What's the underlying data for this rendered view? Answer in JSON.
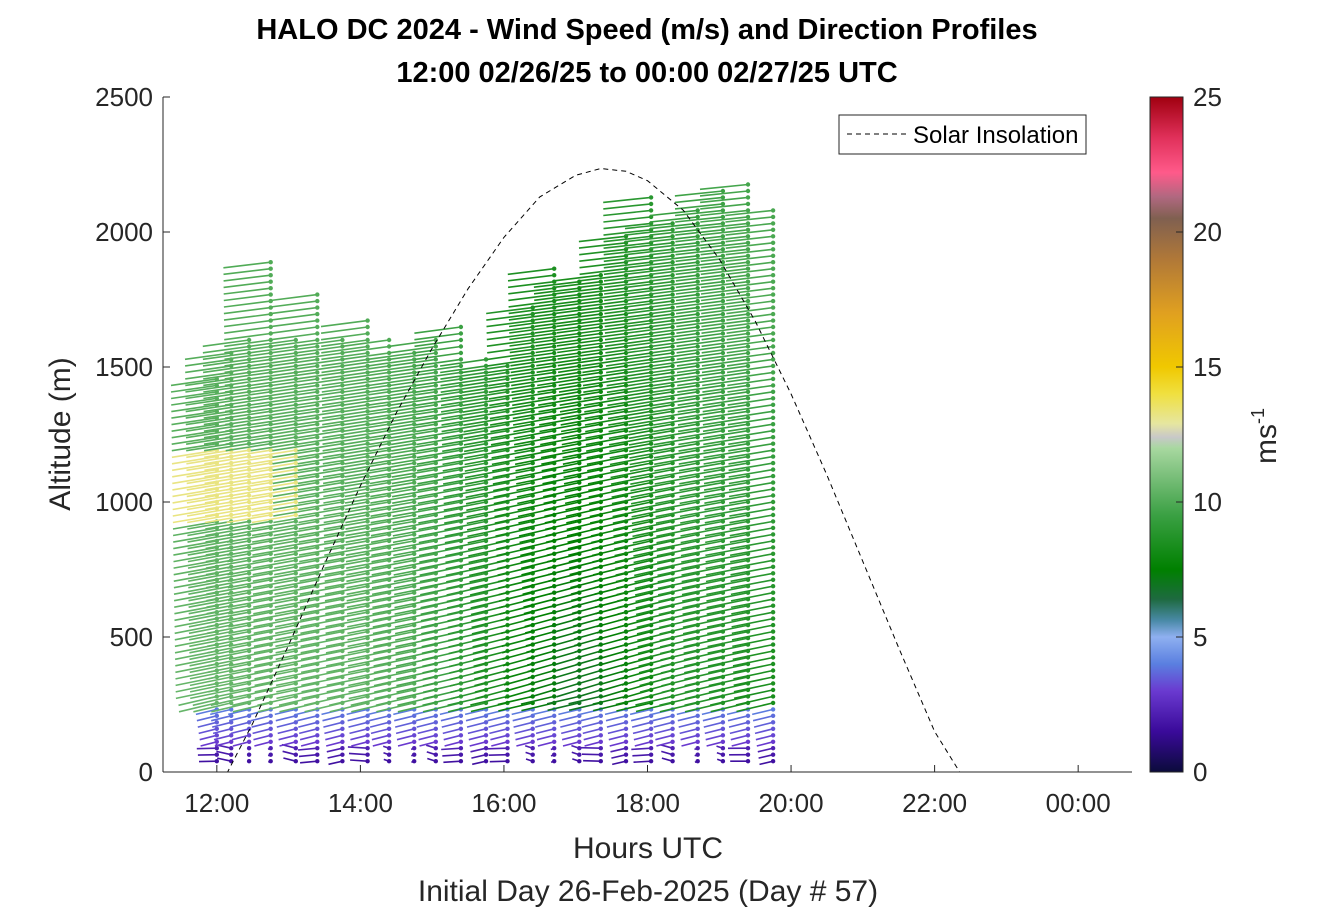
{
  "chart_data": {
    "type": "wind-barb-profile",
    "title": "HALO DC 2024 - Wind Speed (m/s) and Direction Profiles",
    "subtitle": "12:00 02/26/25 to 00:00 02/27/25  UTC",
    "xlabel": "Hours UTC",
    "xlabel2": "Initial Day 26-Feb-2025 (Day # 57)",
    "ylabel": "Altitude (m)",
    "xlim": [
      11.25,
      24.75
    ],
    "ylim": [
      0,
      2500
    ],
    "x_ticks": [
      12,
      14,
      16,
      18,
      20,
      22,
      24
    ],
    "x_tick_labels": [
      "12:00",
      "14:00",
      "16:00",
      "18:00",
      "20:00",
      "22:00",
      "00:00"
    ],
    "y_ticks": [
      0,
      500,
      1000,
      1500,
      2000,
      2500
    ],
    "y_tick_labels": [
      "0",
      "500",
      "1000",
      "1500",
      "2000",
      "2500"
    ],
    "legend": {
      "label": "Solar Insolation",
      "position": "top-right",
      "style": "dashed",
      "color": "#000000"
    },
    "colorbar": {
      "label": "ms",
      "label_exponent": "-1",
      "range": [
        0,
        25
      ],
      "ticks": [
        0,
        5,
        10,
        15,
        20,
        25
      ],
      "tick_labels": [
        "0",
        "5",
        "10",
        "15",
        "20",
        "25"
      ],
      "stops": [
        {
          "v": 0,
          "color": "#0b0b3b"
        },
        {
          "v": 1.5,
          "color": "#3a0a9a"
        },
        {
          "v": 3,
          "color": "#6a3ad0"
        },
        {
          "v": 4,
          "color": "#5a7fe0"
        },
        {
          "v": 5,
          "color": "#8fb0f0"
        },
        {
          "v": 5.6,
          "color": "#4a8aa8"
        },
        {
          "v": 6.4,
          "color": "#1e6a40"
        },
        {
          "v": 7.5,
          "color": "#008000"
        },
        {
          "v": 9.5,
          "color": "#3aa043"
        },
        {
          "v": 11,
          "color": "#7cc07c"
        },
        {
          "v": 12,
          "color": "#a8d8a0"
        },
        {
          "v": 12.4,
          "color": "#c8c8c8"
        },
        {
          "v": 12.9,
          "color": "#e6e6a0"
        },
        {
          "v": 14,
          "color": "#f0e040"
        },
        {
          "v": 15,
          "color": "#f0c800"
        },
        {
          "v": 17,
          "color": "#e0a020"
        },
        {
          "v": 19,
          "color": "#b07838"
        },
        {
          "v": 20.5,
          "color": "#806050"
        },
        {
          "v": 21.3,
          "color": "#b06880"
        },
        {
          "v": 22.2,
          "color": "#ff5a8a"
        },
        {
          "v": 23.5,
          "color": "#e0305a"
        },
        {
          "v": 25,
          "color": "#a00010"
        }
      ]
    },
    "solar_insolation": {
      "x": [
        11.25,
        12.15,
        12.5,
        13,
        13.5,
        14,
        14.5,
        15,
        15.5,
        16,
        16.5,
        17,
        17.35,
        17.7,
        18,
        18.5,
        19,
        19.5,
        20,
        20.5,
        21,
        21.5,
        22,
        22.35,
        22.6,
        24.75
      ],
      "y": [
        0,
        0,
        180,
        470,
        770,
        1060,
        1330,
        1570,
        1790,
        1980,
        2130,
        2210,
        2235,
        2225,
        2190,
        2080,
        1900,
        1670,
        1400,
        1100,
        780,
        460,
        150,
        0,
        0,
        0
      ]
    },
    "wind_profiles": [
      {
        "time": 12.0,
        "z_min": 40,
        "z_max": 1470
      },
      {
        "time": 12.2,
        "z_min": 40,
        "z_max": 1560
      },
      {
        "time": 12.45,
        "z_min": 40,
        "z_max": 1600
      },
      {
        "time": 12.75,
        "z_min": 40,
        "z_max": 1910
      },
      {
        "time": 13.1,
        "z_min": 40,
        "z_max": 1620
      },
      {
        "time": 13.4,
        "z_min": 40,
        "z_max": 1780
      },
      {
        "time": 13.75,
        "z_min": 40,
        "z_max": 1620
      },
      {
        "time": 14.1,
        "z_min": 40,
        "z_max": 1690
      },
      {
        "time": 14.4,
        "z_min": 40,
        "z_max": 1620
      },
      {
        "time": 14.75,
        "z_min": 40,
        "z_max": 1570
      },
      {
        "time": 15.05,
        "z_min": 40,
        "z_max": 1600
      },
      {
        "time": 15.4,
        "z_min": 40,
        "z_max": 1660
      },
      {
        "time": 15.75,
        "z_min": 40,
        "z_max": 1540
      },
      {
        "time": 16.05,
        "z_min": 40,
        "z_max": 1520
      },
      {
        "time": 16.4,
        "z_min": 40,
        "z_max": 1740
      },
      {
        "time": 16.7,
        "z_min": 40,
        "z_max": 1870
      },
      {
        "time": 17.05,
        "z_min": 40,
        "z_max": 1830
      },
      {
        "time": 17.35,
        "z_min": 40,
        "z_max": 1840
      },
      {
        "time": 17.7,
        "z_min": 40,
        "z_max": 2000
      },
      {
        "time": 18.05,
        "z_min": 40,
        "z_max": 2130
      },
      {
        "time": 18.35,
        "z_min": 40,
        "z_max": 2040
      },
      {
        "time": 18.7,
        "z_min": 40,
        "z_max": 2090
      },
      {
        "time": 19.05,
        "z_min": 40,
        "z_max": 2170
      },
      {
        "time": 19.4,
        "z_min": 40,
        "z_max": 2180
      },
      {
        "time": 19.75,
        "z_min": 40,
        "z_max": 2090
      }
    ]
  }
}
